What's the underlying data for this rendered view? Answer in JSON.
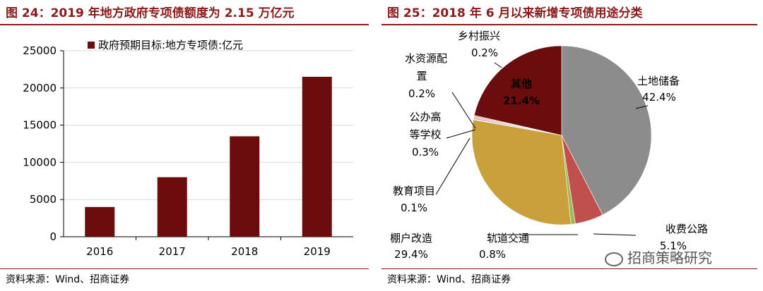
{
  "chart_data": [
    {
      "type": "bar",
      "title": "图 24：2019 年地方政府专项债额度为 2.15 万亿元",
      "series": [
        {
          "name": "政府预期目标:地方专项债:亿元",
          "values": [
            4000,
            8000,
            13500,
            21500
          ]
        }
      ],
      "categories": [
        "2016",
        "2017",
        "2018",
        "2019"
      ],
      "ylim": [
        0,
        25000
      ],
      "yticks": [
        "0",
        "5000",
        "10000",
        "15000",
        "20000",
        "25000"
      ],
      "grid": true,
      "legend": "top",
      "color": "#6B0D0D",
      "source": "资料来源：Wind、招商证券"
    },
    {
      "type": "pie",
      "title": "图 25：2018 年 6 月以来新增专项债用途分类",
      "slices": [
        {
          "name": "土地储备",
          "pct": "42.4%",
          "value": 42.4,
          "color": "#8C8C8C"
        },
        {
          "name": "收费公路",
          "pct": "5.1%",
          "value": 5.1,
          "color": "#C0504D"
        },
        {
          "name": "轨道交通",
          "pct": "0.8%",
          "value": 0.8,
          "color": "#9BBB59"
        },
        {
          "name": "棚户改造",
          "pct": "29.4%",
          "value": 29.4,
          "color": "#C9A03A"
        },
        {
          "name": "教育项目",
          "pct": "0.1%",
          "value": 0.1,
          "color": "#4F81BD"
        },
        {
          "name": "公办高等学校",
          "pct": "0.3%",
          "value": 0.3,
          "color": "#D9A9B0"
        },
        {
          "name": "水资源配置",
          "pct": "0.2%",
          "value": 0.2,
          "color": "#B7A6C9"
        },
        {
          "name": "乡村振兴",
          "pct": "0.2%",
          "value": 0.2,
          "color": "#F79646"
        },
        {
          "name": "其他",
          "pct": "21.4%",
          "value": 21.4,
          "color": "#6B0D0D"
        }
      ],
      "source": "资料来源：Wind、招商证券"
    }
  ],
  "watermark": "招商策略研究"
}
